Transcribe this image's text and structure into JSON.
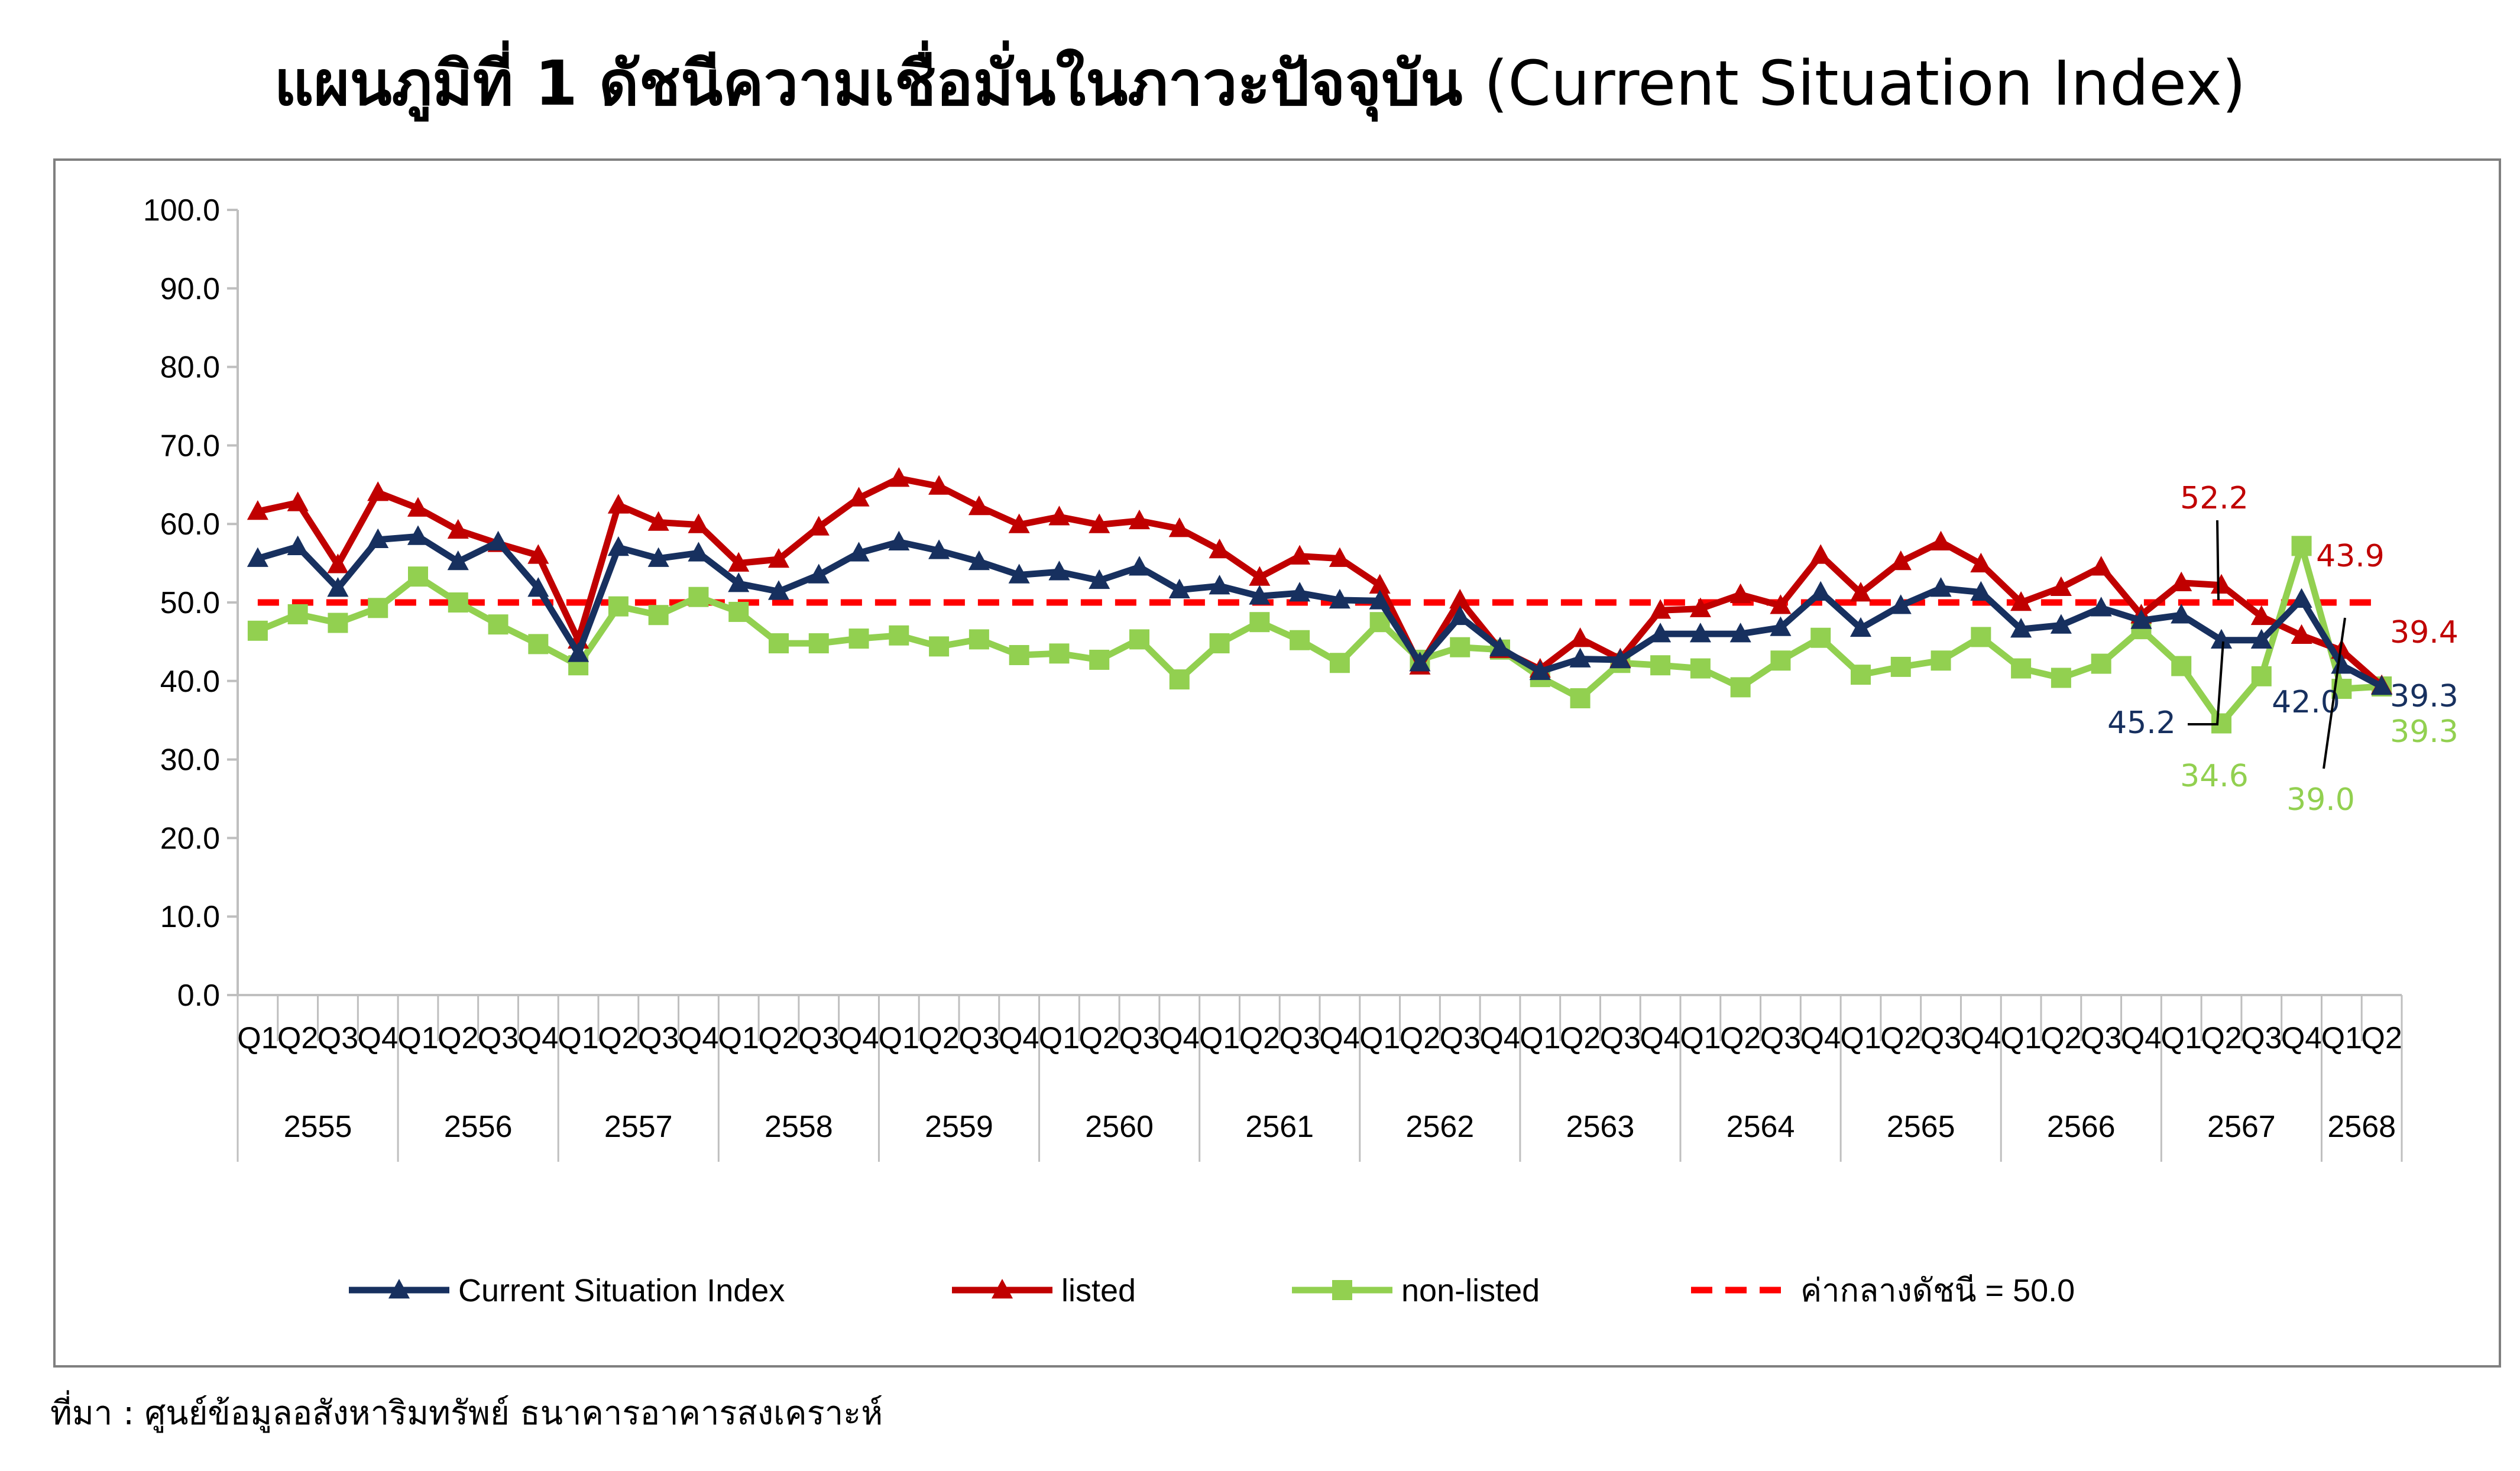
{
  "title": {
    "thai": "แผนภูมิที่ 1 ดัชนีความเชื่อมั่นในภาวะปัจจุบัน",
    "english": "(Current Situation Index)"
  },
  "source": "ที่มา : ศูนย์ข้อมูลอสังหาริมทรัพย์ ธนาคารอาคารสงเคราะห์",
  "colors": {
    "csi": "#17305f",
    "listed": "#c00000",
    "nonlisted": "#92d050",
    "reference": "#ff0000"
  },
  "chart_data": {
    "type": "line",
    "title": "แผนภูมิที่ 1 ดัชนีความเชื่อมั่นในภาวะปัจจุบัน (Current Situation Index)",
    "xlabel": "",
    "ylabel": "",
    "ylim": [
      0,
      100
    ],
    "yticks": [
      "0.0",
      "10.0",
      "20.0",
      "30.0",
      "40.0",
      "50.0",
      "60.0",
      "70.0",
      "80.0",
      "90.0",
      "100.0"
    ],
    "grid": false,
    "legend_position": "bottom",
    "quarters": [
      "Q1",
      "Q2",
      "Q3",
      "Q4",
      "Q1",
      "Q2",
      "Q3",
      "Q4",
      "Q1",
      "Q2",
      "Q3",
      "Q4",
      "Q1",
      "Q2",
      "Q3",
      "Q4",
      "Q1",
      "Q2",
      "Q3",
      "Q4",
      "Q1",
      "Q2",
      "Q3",
      "Q4",
      "Q1",
      "Q2",
      "Q3",
      "Q4",
      "Q1",
      "Q2",
      "Q3",
      "Q4",
      "Q1",
      "Q2",
      "Q3",
      "Q4",
      "Q1",
      "Q2",
      "Q3",
      "Q4",
      "Q1",
      "Q2",
      "Q3",
      "Q4",
      "Q1",
      "Q2",
      "Q3",
      "Q4",
      "Q1",
      "Q2",
      "Q3",
      "Q4",
      "Q1",
      "Q2"
    ],
    "years": [
      {
        "label": "2555",
        "quarters": 4
      },
      {
        "label": "2556",
        "quarters": 4
      },
      {
        "label": "2557",
        "quarters": 4
      },
      {
        "label": "2558",
        "quarters": 4
      },
      {
        "label": "2559",
        "quarters": 4
      },
      {
        "label": "2560",
        "quarters": 4
      },
      {
        "label": "2561",
        "quarters": 4
      },
      {
        "label": "2562",
        "quarters": 4
      },
      {
        "label": "2563",
        "quarters": 4
      },
      {
        "label": "2564",
        "quarters": 4
      },
      {
        "label": "2565",
        "quarters": 4
      },
      {
        "label": "2566",
        "quarters": 4
      },
      {
        "label": "2567",
        "quarters": 4
      },
      {
        "label": "2568",
        "quarters": 2
      }
    ],
    "series": [
      {
        "name": "Current Situation Index",
        "marker": "triangle",
        "values": [
          55.6,
          57.1,
          51.8,
          58.0,
          58.4,
          55.2,
          57.7,
          51.8,
          43.5,
          57.0,
          55.6,
          56.3,
          52.4,
          51.4,
          53.5,
          56.3,
          57.7,
          56.6,
          55.2,
          53.5,
          53.9,
          52.8,
          54.5,
          51.6,
          52.1,
          50.8,
          51.2,
          50.3,
          50.2,
          42.3,
          48.2,
          44.2,
          41.2,
          42.8,
          42.7,
          46.0,
          46.0,
          46.0,
          46.8,
          51.3,
          46.7,
          49.6,
          51.8,
          51.3,
          46.6,
          47.1,
          49.3,
          47.7,
          48.4,
          45.2,
          45.2,
          50.4,
          42.0,
          39.3
        ]
      },
      {
        "name": "listed",
        "marker": "triangle",
        "values": [
          61.6,
          62.7,
          54.8,
          64.0,
          62.0,
          59.2,
          57.5,
          56.0,
          45.2,
          62.4,
          60.2,
          59.9,
          55.0,
          55.5,
          59.6,
          63.3,
          65.8,
          64.8,
          62.2,
          59.9,
          60.9,
          59.9,
          60.4,
          59.4,
          56.7,
          53.2,
          55.9,
          55.6,
          52.2,
          41.9,
          50.3,
          44.0,
          41.5,
          45.4,
          42.8,
          49.0,
          49.2,
          51.0,
          49.6,
          56.0,
          51.2,
          55.2,
          57.7,
          54.9,
          50.0,
          51.9,
          54.5,
          48.4,
          52.5,
          52.2,
          48.2,
          45.8,
          43.9,
          39.4
        ]
      },
      {
        "name": "non-listed",
        "marker": "square",
        "values": [
          46.4,
          48.5,
          47.4,
          49.3,
          53.3,
          50.0,
          47.2,
          44.7,
          42.0,
          49.5,
          48.4,
          50.7,
          48.8,
          44.8,
          44.8,
          45.4,
          45.8,
          44.4,
          45.3,
          43.3,
          43.5,
          42.7,
          45.3,
          40.2,
          44.8,
          47.5,
          45.2,
          42.3,
          47.5,
          42.7,
          44.3,
          44.0,
          40.5,
          37.8,
          42.3,
          42.0,
          41.6,
          39.2,
          42.6,
          45.5,
          40.8,
          41.8,
          42.6,
          45.6,
          41.6,
          40.4,
          42.2,
          46.6,
          41.9,
          34.6,
          40.6,
          57.2,
          39.0,
          39.3
        ]
      },
      {
        "name": "ค่ากลางดัชนี = 50.0",
        "style": "dashed",
        "value": 50.0
      }
    ],
    "annotations": [
      {
        "text": "52.2",
        "series": "listed"
      },
      {
        "text": "43.9",
        "series": "listed"
      },
      {
        "text": "39.4",
        "series": "listed"
      },
      {
        "text": "45.2",
        "series": "Current Situation Index"
      },
      {
        "text": "42.0",
        "series": "Current Situation Index"
      },
      {
        "text": "39.3",
        "series": "Current Situation Index"
      },
      {
        "text": "34.6",
        "series": "non-listed"
      },
      {
        "text": "39.0",
        "series": "non-listed"
      },
      {
        "text": "39.3",
        "series": "non-listed"
      }
    ]
  }
}
